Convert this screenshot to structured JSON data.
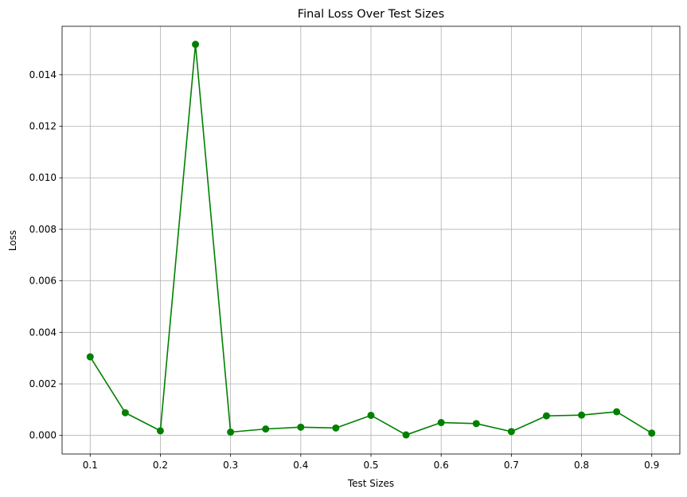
{
  "chart_data": {
    "type": "line",
    "title": "Final Loss Over Test Sizes",
    "xlabel": "Test Sizes",
    "ylabel": "Loss",
    "grid": true,
    "xlim": [
      0.06,
      0.94
    ],
    "ylim": [
      -0.00072,
      0.01588
    ],
    "xticks": [
      0.1,
      0.2,
      0.3,
      0.4,
      0.5,
      0.6,
      0.7,
      0.8,
      0.9
    ],
    "xtick_labels": [
      "0.1",
      "0.2",
      "0.3",
      "0.4",
      "0.5",
      "0.6",
      "0.7",
      "0.8",
      "0.9"
    ],
    "yticks": [
      0.0,
      0.002,
      0.004,
      0.006,
      0.008,
      0.01,
      0.012,
      0.014
    ],
    "ytick_labels": [
      "0.000",
      "0.002",
      "0.004",
      "0.006",
      "0.008",
      "0.010",
      "0.012",
      "0.014"
    ],
    "series": [
      {
        "color": "#008000",
        "marker": "circle",
        "x": [
          0.1,
          0.15,
          0.2,
          0.25,
          0.3,
          0.35,
          0.4,
          0.45,
          0.5,
          0.55,
          0.6,
          0.65,
          0.7,
          0.75,
          0.8,
          0.85,
          0.9
        ],
        "y": [
          0.00305,
          0.00088,
          0.00018,
          0.01518,
          0.00013,
          0.00025,
          0.00032,
          0.00029,
          0.00078,
          2e-05,
          0.0005,
          0.00046,
          0.00015,
          0.00076,
          0.00079,
          0.00092,
          9e-05
        ]
      }
    ]
  }
}
